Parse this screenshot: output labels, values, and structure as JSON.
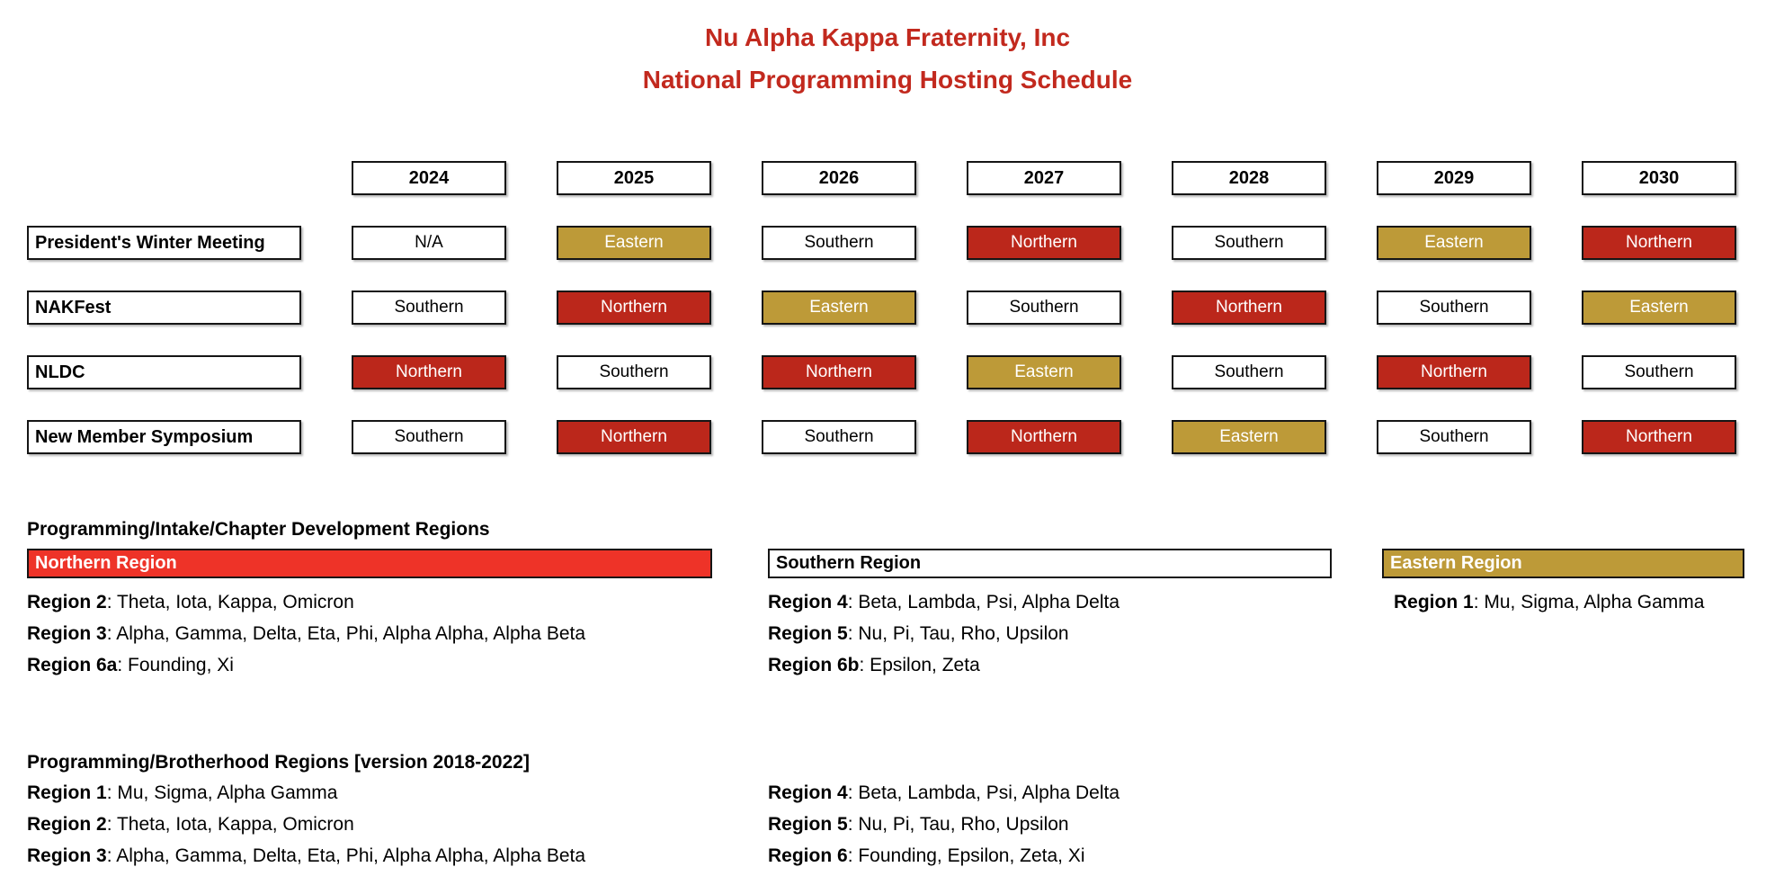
{
  "title": {
    "line1": "Nu Alpha Kappa Fraternity, Inc",
    "line2": "National Programming Hosting Schedule"
  },
  "colors": {
    "title_red": "#c2291e",
    "northern_cell_red": "#bb271b",
    "eastern_gold": "#bd9a38",
    "northern_region_header_red": "#ee3328"
  },
  "schedule": {
    "years": [
      "2024",
      "2025",
      "2026",
      "2027",
      "2028",
      "2029",
      "2030"
    ],
    "rows": [
      {
        "label": "President's Winter Meeting",
        "cells": [
          {
            "text": "N/A",
            "style": "plain"
          },
          {
            "text": "Eastern",
            "style": "eastern"
          },
          {
            "text": "Southern",
            "style": "plain"
          },
          {
            "text": "Northern",
            "style": "northern"
          },
          {
            "text": "Southern",
            "style": "plain"
          },
          {
            "text": "Eastern",
            "style": "eastern"
          },
          {
            "text": "Northern",
            "style": "northern"
          }
        ]
      },
      {
        "label": "NAKFest",
        "cells": [
          {
            "text": "Southern",
            "style": "plain"
          },
          {
            "text": "Northern",
            "style": "northern"
          },
          {
            "text": "Eastern",
            "style": "eastern"
          },
          {
            "text": "Southern",
            "style": "plain"
          },
          {
            "text": "Northern",
            "style": "northern"
          },
          {
            "text": "Southern",
            "style": "plain"
          },
          {
            "text": "Eastern",
            "style": "eastern"
          }
        ]
      },
      {
        "label": "NLDC",
        "cells": [
          {
            "text": "Northern",
            "style": "northern"
          },
          {
            "text": "Southern",
            "style": "plain"
          },
          {
            "text": "Northern",
            "style": "northern"
          },
          {
            "text": "Eastern",
            "style": "eastern"
          },
          {
            "text": "Southern",
            "style": "plain"
          },
          {
            "text": "Northern",
            "style": "northern"
          },
          {
            "text": "Southern",
            "style": "plain"
          }
        ]
      },
      {
        "label": "New Member Symposium",
        "cells": [
          {
            "text": "Southern",
            "style": "plain"
          },
          {
            "text": "Northern",
            "style": "northern"
          },
          {
            "text": "Southern",
            "style": "plain"
          },
          {
            "text": "Northern",
            "style": "northern"
          },
          {
            "text": "Eastern",
            "style": "eastern"
          },
          {
            "text": "Southern",
            "style": "plain"
          },
          {
            "text": "Northern",
            "style": "northern"
          }
        ]
      }
    ]
  },
  "intake": {
    "heading": "Programming/Intake/Chapter Development Regions",
    "northern": {
      "header": "Northern Region",
      "style": "northern",
      "items": [
        {
          "label": "Region 2",
          "rest": ": Theta, Iota, Kappa, Omicron"
        },
        {
          "label": "Region 3",
          "rest": ": Alpha, Gamma, Delta, Eta, Phi, Alpha Alpha, Alpha Beta"
        },
        {
          "label": "Region 6a",
          "rest": ": Founding, Xi"
        }
      ]
    },
    "southern": {
      "header": "Southern Region",
      "style": "southern",
      "items": [
        {
          "label": "Region 4",
          "rest": ": Beta, Lambda, Psi, Alpha Delta"
        },
        {
          "label": "Region 5",
          "rest": ": Nu, Pi, Tau, Rho, Upsilon"
        },
        {
          "label": "Region 6b",
          "rest": ": Epsilon, Zeta"
        }
      ]
    },
    "eastern": {
      "header": "Eastern Region",
      "style": "eastern",
      "items": [
        {
          "label": "Region 1",
          "rest": ": Mu, Sigma, Alpha Gamma"
        }
      ]
    }
  },
  "brotherhood": {
    "heading": "Programming/Brotherhood Regions [version 2018-2022]",
    "left": [
      {
        "label": "Region 1",
        "rest": ": Mu, Sigma, Alpha Gamma"
      },
      {
        "label": "Region 2",
        "rest": ": Theta, Iota, Kappa, Omicron"
      },
      {
        "label": "Region 3",
        "rest": ": Alpha, Gamma, Delta, Eta, Phi, Alpha Alpha, Alpha Beta"
      }
    ],
    "right": [
      {
        "label": "Region 4",
        "rest": ": Beta, Lambda, Psi, Alpha Delta"
      },
      {
        "label": "Region 5",
        "rest": ": Nu, Pi, Tau, Rho, Upsilon"
      },
      {
        "label": "Region 6",
        "rest": ": Founding, Epsilon, Zeta, Xi"
      }
    ]
  }
}
